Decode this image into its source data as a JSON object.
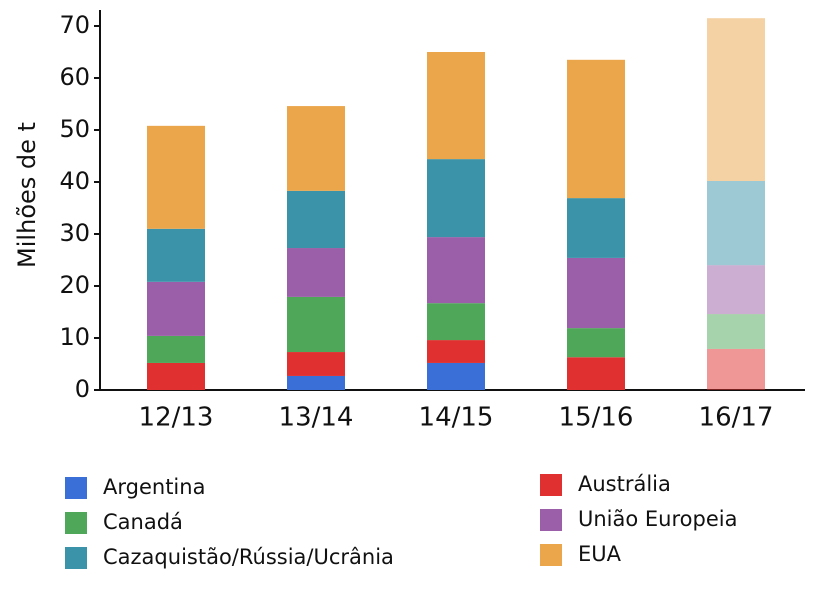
{
  "chart_data": {
    "type": "stacked-bar",
    "y_label": "Milhões de t",
    "categories": [
      "12/13",
      "13/14",
      "14/15",
      "15/16",
      "16/17"
    ],
    "category_opacity": [
      1,
      1,
      1,
      1,
      0.5
    ],
    "series": [
      {
        "name": "Argentina",
        "color": "#3a6fd8",
        "values": [
          0,
          2.7,
          5.2,
          0,
          0
        ]
      },
      {
        "name": "Austrália",
        "color": "#e03030",
        "values": [
          5.2,
          4.6,
          4.4,
          6.3,
          7.9
        ]
      },
      {
        "name": "Canadá",
        "color": "#4fa85a",
        "values": [
          5.2,
          10.6,
          7.1,
          5.6,
          6.7
        ]
      },
      {
        "name": "União Europeia",
        "color": "#9b5ea8",
        "values": [
          10.4,
          9.4,
          12.7,
          13.5,
          9.4
        ]
      },
      {
        "name": "Cazaquistão/Rússia/Ucrânia",
        "color": "#3a93a8",
        "values": [
          10.2,
          11.0,
          15.0,
          11.5,
          16.2
        ]
      },
      {
        "name": "EUA",
        "color": "#eba54a",
        "values": [
          19.8,
          16.3,
          20.6,
          26.6,
          31.3
        ]
      }
    ],
    "ylim": [
      0,
      70
    ],
    "yticks": [
      0,
      10,
      20,
      30,
      40,
      50,
      60,
      70
    ],
    "grid": false
  }
}
